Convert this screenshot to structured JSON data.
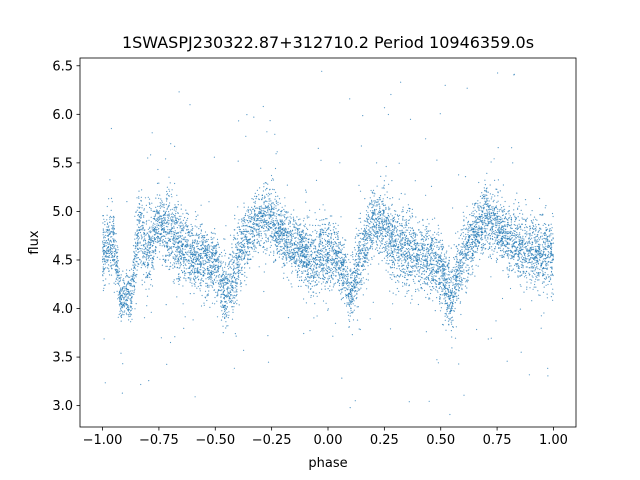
{
  "chart_data": {
    "type": "scatter",
    "title": "1SWASPJ230322.87+312710.2 Period 10946359.0s",
    "xlabel": "phase",
    "ylabel": "flux",
    "xlim": [
      -1.1,
      1.1
    ],
    "ylim": [
      2.78,
      6.58
    ],
    "x_ticks": [
      -1.0,
      -0.75,
      -0.5,
      -0.25,
      0.0,
      0.25,
      0.5,
      0.75,
      1.0
    ],
    "x_tick_labels": [
      "−1.00",
      "−0.75",
      "−0.50",
      "−0.25",
      "0.00",
      "0.25",
      "0.50",
      "0.75",
      "1.00"
    ],
    "y_ticks": [
      3.0,
      3.5,
      4.0,
      4.5,
      5.0,
      5.5,
      6.0,
      6.5
    ],
    "y_tick_labels": [
      "3.0",
      "3.5",
      "4.0",
      "4.5",
      "5.0",
      "5.5",
      "6.0",
      "6.5"
    ],
    "grid": false,
    "legend": "none",
    "marker_color": "#1f77b4",
    "series": [
      {
        "phase_range": [
          -1.0,
          1.0
        ],
        "symmetric_about_zero_offset": 1.0,
        "flux_profile": [
          {
            "x": -1.0,
            "y": 4.55,
            "spread": 0.35
          },
          {
            "x": -0.95,
            "y": 4.7,
            "spread": 0.3
          },
          {
            "x": -0.92,
            "y": 4.1,
            "spread": 0.2
          },
          {
            "x": -0.87,
            "y": 4.15,
            "spread": 0.25
          },
          {
            "x": -0.84,
            "y": 4.85,
            "spread": 0.35
          },
          {
            "x": -0.8,
            "y": 4.55,
            "spread": 0.4
          },
          {
            "x": -0.75,
            "y": 4.85,
            "spread": 0.25
          },
          {
            "x": -0.7,
            "y": 4.8,
            "spread": 0.4
          },
          {
            "x": -0.65,
            "y": 4.6,
            "spread": 0.35
          },
          {
            "x": -0.6,
            "y": 4.55,
            "spread": 0.3
          },
          {
            "x": -0.55,
            "y": 4.5,
            "spread": 0.35
          },
          {
            "x": -0.5,
            "y": 4.45,
            "spread": 0.3
          },
          {
            "x": -0.45,
            "y": 4.1,
            "spread": 0.35
          },
          {
            "x": -0.4,
            "y": 4.55,
            "spread": 0.35
          },
          {
            "x": -0.35,
            "y": 4.75,
            "spread": 0.3
          },
          {
            "x": -0.3,
            "y": 4.95,
            "spread": 0.3
          },
          {
            "x": -0.25,
            "y": 4.9,
            "spread": 0.3
          },
          {
            "x": -0.2,
            "y": 4.75,
            "spread": 0.3
          },
          {
            "x": -0.15,
            "y": 4.65,
            "spread": 0.3
          },
          {
            "x": -0.1,
            "y": 4.55,
            "spread": 0.3
          },
          {
            "x": -0.05,
            "y": 4.5,
            "spread": 0.35
          },
          {
            "x": 0.0,
            "y": 4.55,
            "spread": 0.35
          },
          {
            "x": 0.05,
            "y": 4.5,
            "spread": 0.3
          },
          {
            "x": 0.1,
            "y": 4.15,
            "spread": 0.25
          },
          {
            "x": 0.15,
            "y": 4.55,
            "spread": 0.4
          },
          {
            "x": 0.2,
            "y": 4.9,
            "spread": 0.3
          },
          {
            "x": 0.25,
            "y": 4.85,
            "spread": 0.3
          },
          {
            "x": 0.3,
            "y": 4.65,
            "spread": 0.4
          },
          {
            "x": 0.35,
            "y": 4.6,
            "spread": 0.35
          },
          {
            "x": 0.4,
            "y": 4.55,
            "spread": 0.3
          },
          {
            "x": 0.45,
            "y": 4.5,
            "spread": 0.35
          },
          {
            "x": 0.5,
            "y": 4.4,
            "spread": 0.35
          },
          {
            "x": 0.55,
            "y": 4.1,
            "spread": 0.35
          },
          {
            "x": 0.6,
            "y": 4.55,
            "spread": 0.35
          },
          {
            "x": 0.65,
            "y": 4.75,
            "spread": 0.3
          },
          {
            "x": 0.7,
            "y": 4.95,
            "spread": 0.3
          },
          {
            "x": 0.75,
            "y": 4.85,
            "spread": 0.3
          },
          {
            "x": 0.8,
            "y": 4.7,
            "spread": 0.3
          },
          {
            "x": 0.85,
            "y": 4.65,
            "spread": 0.3
          },
          {
            "x": 0.9,
            "y": 4.6,
            "spread": 0.3
          },
          {
            "x": 0.95,
            "y": 4.55,
            "spread": 0.35
          },
          {
            "x": 1.0,
            "y": 4.55,
            "spread": 0.35
          }
        ]
      }
    ]
  }
}
